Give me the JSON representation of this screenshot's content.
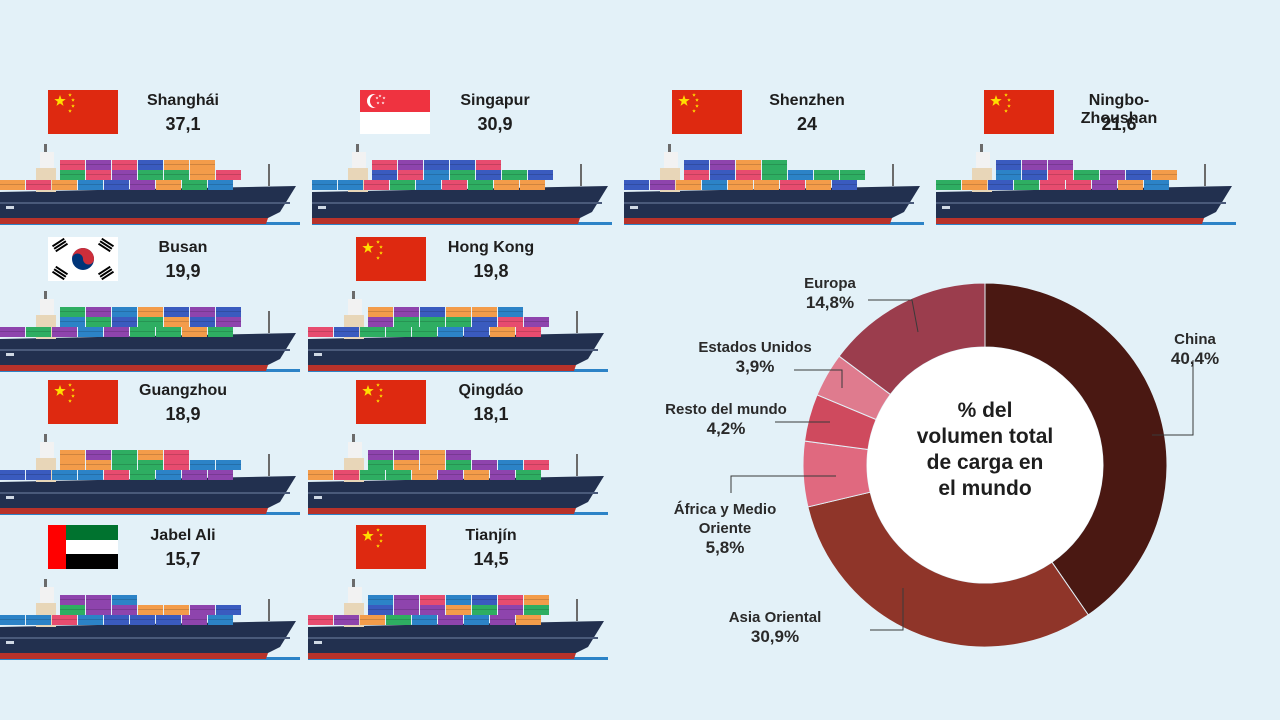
{
  "ports": [
    {
      "name": "Shanghái",
      "value": "37,1",
      "flag": "china"
    },
    {
      "name": "Singapur",
      "value": "30,9",
      "flag": "singapore"
    },
    {
      "name": "Shenzhen",
      "value": "24",
      "flag": "china"
    },
    {
      "name": "Ningbo-Zhoushan",
      "value": "21,6",
      "flag": "china"
    },
    {
      "name": "Busan",
      "value": "19,9",
      "flag": "south-korea"
    },
    {
      "name": "Hong Kong",
      "value": "19,8",
      "flag": "china"
    },
    {
      "name": "Guangzhou",
      "value": "18,9",
      "flag": "china"
    },
    {
      "name": "Qingdáo",
      "value": "18,1",
      "flag": "china"
    },
    {
      "name": "Jabel Ali",
      "value": "15,7",
      "flag": "uae"
    },
    {
      "name": "Tianjín",
      "value": "14,5",
      "flag": "china"
    }
  ],
  "chart_data": {
    "type": "pie",
    "style": "donut",
    "center_title": "% del volumen total de carga en el mundo",
    "slices": [
      {
        "name": "China",
        "value": 40.4,
        "label": "40,4%",
        "color": "#4a1812"
      },
      {
        "name": "Asia Oriental",
        "value": 30.9,
        "label": "30,9%",
        "color": "#8f3529"
      },
      {
        "name": "África y Medio Oriente",
        "value": 5.8,
        "label": "5,8%",
        "color": "#e0697f"
      },
      {
        "name": "Resto del mundo",
        "value": 4.2,
        "label": "4,2%",
        "color": "#cf4a5e"
      },
      {
        "name": "Estados Unidos",
        "value": 3.9,
        "label": "3,9%",
        "color": "#df7b8e"
      },
      {
        "name": "Europa",
        "value": 14.8,
        "label": "14,8%",
        "color": "#9b3d4d"
      }
    ]
  }
}
